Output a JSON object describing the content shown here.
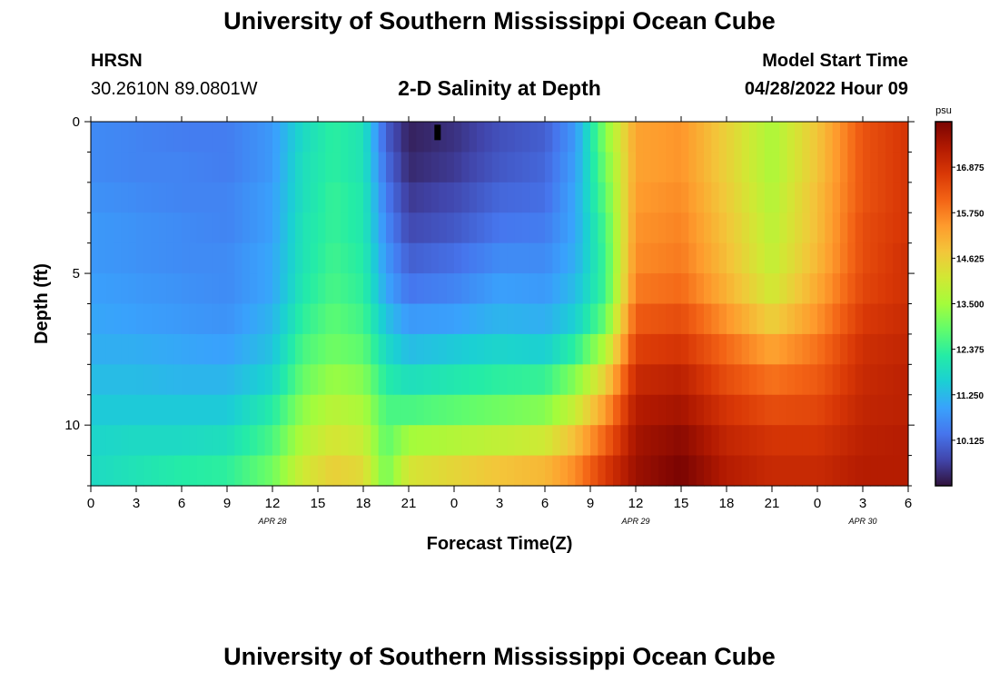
{
  "header": {
    "title": "University of Southern Mississippi Ocean Cube",
    "station": "HRSN",
    "coordinates": "30.2610N  89.0801W",
    "subtitle": "2-D Salinity at Depth",
    "model_start_label": "Model Start Time",
    "model_start_value": "04/28/2022 Hour 09"
  },
  "footer": {
    "title": "University of Southern Mississippi Ocean Cube"
  },
  "colormap": [
    "#30123b",
    "#4145ab",
    "#4675ed",
    "#39a2fc",
    "#1bcfd4",
    "#24eca6",
    "#61fc6c",
    "#a4fc3b",
    "#d1e834",
    "#f3c63a",
    "#fe9b2d",
    "#f36315",
    "#d93806",
    "#b11901",
    "#7a0402"
  ],
  "chart_data": {
    "type": "heatmap",
    "title": "2-D Salinity at Depth",
    "xlabel": "Forecast Time(Z)",
    "ylabel": "Depth (ft)",
    "x_range_hours": [
      0,
      54
    ],
    "y_range_ft": [
      0,
      12
    ],
    "x_ticks": [
      "0",
      "3",
      "6",
      "9",
      "12",
      "15",
      "18",
      "21",
      "0",
      "3",
      "6",
      "9",
      "12",
      "15",
      "18",
      "21",
      "0",
      "3",
      "6"
    ],
    "y_ticks": [
      {
        "value": 0,
        "label": "0"
      },
      {
        "value": 5,
        "label": "5"
      },
      {
        "value": 10,
        "label": "10"
      }
    ],
    "date_labels": [
      {
        "hour": 12,
        "label": "APR 28"
      },
      {
        "hour": 36,
        "label": "APR 29"
      },
      {
        "hour": 51,
        "label": "APR 30"
      }
    ],
    "colorbar": {
      "unit": "psu",
      "min": 9.0,
      "max": 18.0,
      "ticks": [
        10.125,
        11.25,
        12.375,
        13.5,
        14.625,
        15.75,
        16.875
      ],
      "tick_labels": [
        "10.125",
        "11.250",
        "12.375",
        "13.500",
        "14.625",
        "15.750",
        "16.875"
      ]
    },
    "salinity_profiles_psu": {
      "description": "approximate salinity by forecast hour (columns) at depth levels 0..11 ft",
      "depths_ft": [
        0.5,
        1.5,
        2.5,
        3.5,
        4.5,
        5.5,
        6.5,
        7.5,
        8.5,
        9.5,
        10.5,
        11.5
      ],
      "points": [
        {
          "hour": 0,
          "values": [
            10.6,
            10.6,
            10.7,
            10.8,
            10.8,
            10.9,
            11.0,
            11.1,
            11.3,
            11.5,
            11.7,
            11.8
          ]
        },
        {
          "hour": 3,
          "values": [
            10.5,
            10.5,
            10.6,
            10.7,
            10.7,
            10.8,
            10.9,
            11.1,
            11.3,
            11.5,
            11.8,
            12.0
          ]
        },
        {
          "hour": 6,
          "values": [
            10.4,
            10.5,
            10.5,
            10.6,
            10.6,
            10.7,
            10.8,
            11.0,
            11.2,
            11.5,
            11.8,
            12.2
          ]
        },
        {
          "hour": 9,
          "values": [
            10.4,
            10.4,
            10.5,
            10.5,
            10.6,
            10.6,
            10.7,
            10.9,
            11.2,
            11.5,
            11.9,
            12.3
          ]
        },
        {
          "hour": 12,
          "values": [
            10.8,
            10.8,
            10.9,
            10.9,
            11.0,
            11.0,
            11.2,
            11.4,
            11.7,
            12.2,
            12.6,
            13.0
          ]
        },
        {
          "hour": 14,
          "values": [
            11.8,
            11.9,
            11.9,
            12.0,
            12.0,
            12.1,
            12.3,
            12.6,
            12.9,
            13.3,
            13.7,
            14.1
          ]
        },
        {
          "hour": 16,
          "values": [
            12.3,
            12.3,
            12.4,
            12.4,
            12.5,
            12.6,
            12.8,
            13.0,
            13.4,
            13.8,
            14.2,
            14.6
          ]
        },
        {
          "hour": 18,
          "values": [
            12.0,
            12.0,
            12.1,
            12.1,
            12.2,
            12.3,
            12.5,
            12.8,
            13.2,
            13.6,
            14.0,
            14.4
          ]
        },
        {
          "hour": 19.5,
          "values": [
            10.0,
            10.2,
            10.4,
            10.6,
            10.8,
            11.0,
            11.4,
            11.8,
            12.2,
            12.6,
            12.8,
            13.0
          ]
        },
        {
          "hour": 21,
          "values": [
            9.2,
            9.3,
            9.5,
            9.7,
            10.0,
            10.3,
            10.8,
            11.3,
            11.9,
            12.6,
            13.5,
            14.2
          ]
        },
        {
          "hour": 24,
          "values": [
            9.4,
            9.5,
            9.7,
            9.9,
            10.2,
            10.5,
            10.9,
            11.5,
            12.1,
            12.8,
            13.7,
            14.5
          ]
        },
        {
          "hour": 27,
          "values": [
            9.8,
            9.9,
            10.1,
            10.3,
            10.6,
            10.9,
            11.2,
            11.7,
            12.3,
            13.0,
            13.9,
            14.8
          ]
        },
        {
          "hour": 30,
          "values": [
            10.0,
            10.1,
            10.2,
            10.4,
            10.6,
            10.8,
            11.1,
            11.6,
            12.4,
            13.2,
            14.1,
            15.0
          ]
        },
        {
          "hour": 32,
          "values": [
            10.8,
            10.9,
            11.0,
            11.0,
            11.1,
            11.3,
            11.6,
            12.3,
            13.2,
            14.0,
            14.9,
            15.6
          ]
        },
        {
          "hour": 34,
          "values": [
            13.2,
            13.0,
            12.8,
            12.6,
            12.5,
            12.5,
            12.9,
            13.7,
            14.6,
            15.4,
            16.1,
            16.7
          ]
        },
        {
          "hour": 36,
          "values": [
            15.3,
            15.3,
            15.4,
            15.5,
            15.6,
            15.8,
            16.2,
            16.6,
            17.0,
            17.3,
            17.5,
            17.6
          ]
        },
        {
          "hour": 39,
          "values": [
            15.5,
            15.5,
            15.6,
            15.7,
            15.8,
            16.0,
            16.4,
            16.8,
            17.2,
            17.5,
            17.8,
            18.0
          ]
        },
        {
          "hour": 42,
          "values": [
            14.6,
            14.6,
            14.7,
            14.8,
            14.9,
            15.1,
            15.5,
            16.0,
            16.4,
            16.8,
            17.1,
            17.3
          ]
        },
        {
          "hour": 45,
          "values": [
            13.6,
            13.6,
            13.7,
            13.8,
            13.9,
            14.1,
            14.6,
            15.3,
            15.9,
            16.4,
            16.8,
            17.0
          ]
        },
        {
          "hour": 48,
          "values": [
            14.8,
            14.8,
            14.9,
            14.9,
            15.0,
            15.2,
            15.5,
            15.9,
            16.2,
            16.5,
            16.8,
            17.0
          ]
        },
        {
          "hour": 51,
          "values": [
            16.3,
            16.3,
            16.3,
            16.4,
            16.4,
            16.5,
            16.7,
            16.9,
            17.0,
            17.1,
            17.2,
            17.3
          ]
        },
        {
          "hour": 54,
          "values": [
            16.8,
            16.8,
            16.8,
            16.8,
            16.9,
            16.9,
            17.0,
            17.1,
            17.2,
            17.2,
            17.3,
            17.3
          ]
        }
      ]
    }
  }
}
